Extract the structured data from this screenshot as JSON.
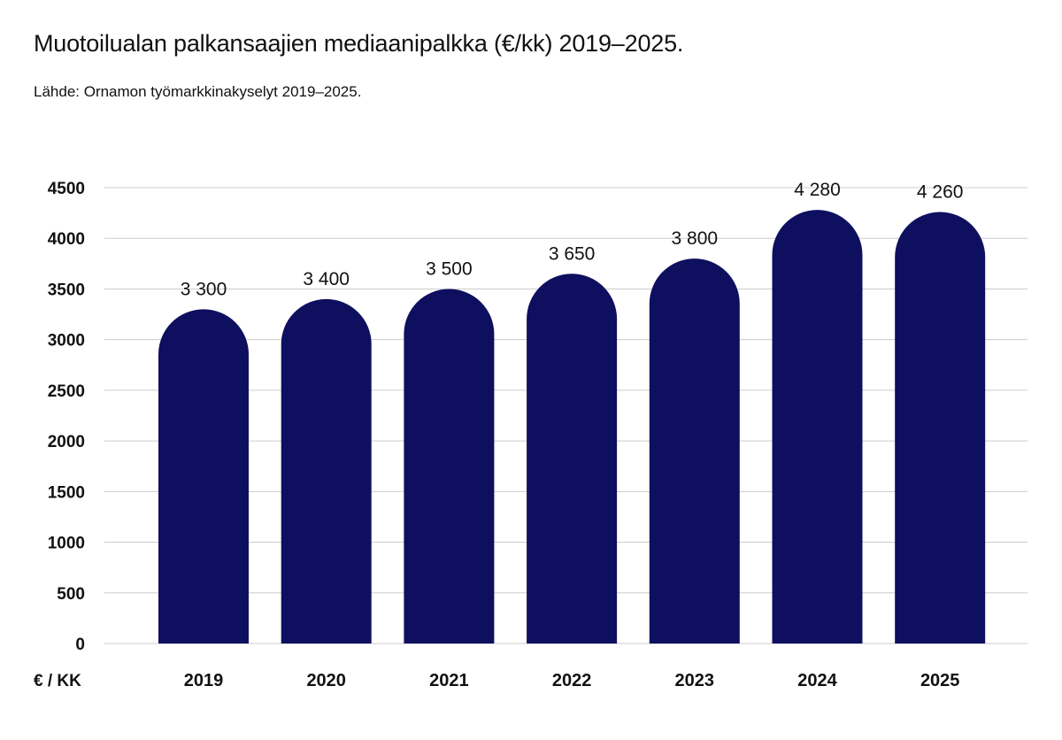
{
  "chart_data": {
    "type": "bar",
    "title": "Muotoilualan palkansaajien mediaanipalkka (€/kk) 2019–2025.",
    "subtitle": "Lähde: Ornamon työmarkkinakyselyt 2019–2025.",
    "ylabel": "€ / KK",
    "categories": [
      "2019",
      "2020",
      "2021",
      "2022",
      "2023",
      "2024",
      "2025"
    ],
    "values": [
      3300,
      3400,
      3500,
      3650,
      3800,
      4280,
      4260
    ],
    "data_labels": [
      "3 300",
      "3 400",
      "3 500",
      "3 650",
      "3 800",
      "4 280",
      "4 260"
    ],
    "yticks": [
      0,
      500,
      1000,
      1500,
      2000,
      2500,
      3000,
      3500,
      4000,
      4500
    ],
    "ytick_labels": [
      "0",
      "500",
      "1000",
      "1500",
      "2000",
      "2500",
      "3000",
      "3500",
      "4000",
      "4500"
    ],
    "ylim": [
      0,
      4500
    ],
    "grid": true,
    "legend": "none",
    "colors": {
      "bar": "#0f0f5f",
      "grid": "#cccccc",
      "text": "#111111"
    }
  }
}
